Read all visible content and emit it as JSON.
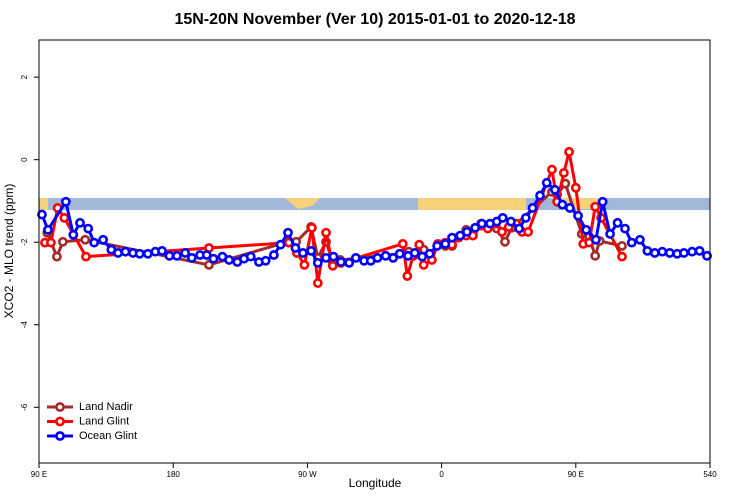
{
  "chart_data": {
    "type": "line",
    "title": "15N-20N November (Ver 10)   2015-01-01 to 2020-12-18",
    "x_label": "Longitude",
    "y_label": "XCO2 - MLO trend (ppm)",
    "xlim": [
      90,
      540
    ],
    "ylim": [
      -7.35,
      2.9
    ],
    "xticks": [
      {
        "value": 90,
        "label": "90 E"
      },
      180,
      {
        "value": 270,
        "label": "90 W"
      },
      {
        "value": 360,
        "label": "0"
      },
      {
        "value": 450,
        "label": "90 E"
      },
      540
    ],
    "yticks": [
      -6,
      -4,
      -2,
      0,
      2
    ],
    "legend": "bottom-left",
    "series": [
      {
        "name": "Land Nadir",
        "color": "#a52a2a",
        "x": [
          95.5,
          102,
          106,
          121,
          204,
          257,
          262.5,
          272.5,
          277,
          282.5,
          287,
          292,
          332,
          338,
          344,
          348,
          352,
          357.5,
          362.5,
          367,
          371.5,
          376.5,
          381,
          386.5,
          392.5,
          397,
          402.5,
          407,
          434,
          437.5,
          443,
          454,
          459,
          463,
          466,
          481
        ],
        "values": [
          -1.77,
          -2.35,
          -1.99,
          -1.94,
          -2.55,
          -1.99,
          -1.99,
          -1.63,
          -2.38,
          -1.99,
          -2.48,
          -2.43,
          -2.28,
          -2.23,
          -2.28,
          -2.18,
          -2.28,
          -2.06,
          -2.09,
          -2.09,
          -1.89,
          -1.7,
          -1.77,
          -1.55,
          -1.58,
          -1.67,
          -1.99,
          -1.65,
          -0.78,
          -0.85,
          -0.58,
          -1.8,
          -1.87,
          -2.33,
          -1.97,
          -2.09
        ]
      },
      {
        "name": "Land Glint",
        "color": "#ff0000",
        "x": [
          94,
          98,
          102.5,
          107,
          121.5,
          204,
          257.5,
          263,
          268,
          273,
          277,
          282.5,
          287,
          292.5,
          334,
          337,
          341,
          345,
          348,
          353.5,
          357.5,
          362.5,
          367,
          371.5,
          376.5,
          381,
          386.5,
          391,
          396,
          400.5,
          405,
          410,
          414,
          418,
          434,
          437.5,
          442,
          445.5,
          450,
          455,
          459,
          463,
          467,
          481
        ],
        "values": [
          -2.01,
          -2.01,
          -1.17,
          -1.41,
          -2.35,
          -2.14,
          -2.01,
          -2.26,
          -2.55,
          -1.65,
          -2.99,
          -1.77,
          -2.57,
          -2.5,
          -2.04,
          -2.82,
          -2.33,
          -2.06,
          -2.55,
          -2.43,
          -2.04,
          -2.01,
          -2.06,
          -1.87,
          -1.84,
          -1.84,
          -1.6,
          -1.67,
          -1.55,
          -1.75,
          -1.63,
          -1.55,
          -1.75,
          -1.75,
          -0.24,
          -1.02,
          -0.32,
          0.19,
          -0.68,
          -2.04,
          -2.01,
          -1.14,
          -1.41,
          -2.35
        ]
      },
      {
        "name": "Ocean Glint",
        "color": "#0000ff",
        "x": [
          92,
          96,
          108,
          113,
          117.5,
          123,
          127,
          133,
          138.5,
          143,
          148,
          153,
          157.5,
          163,
          168,
          172.5,
          177.5,
          182.5,
          188,
          192.5,
          198,
          202.5,
          207,
          213,
          217.5,
          223,
          227.5,
          232,
          237.5,
          242,
          247.5,
          252,
          257,
          262,
          267,
          272.5,
          277,
          282.5,
          287.5,
          292.5,
          298,
          302.5,
          308,
          312.5,
          317,
          322.5,
          327.5,
          332,
          337.5,
          342,
          347,
          352,
          357,
          362.5,
          367,
          372.5,
          377,
          382.5,
          387,
          392.5,
          397,
          401,
          406.5,
          412,
          416.5,
          421,
          426,
          430.5,
          436,
          441,
          446,
          451.5,
          457,
          463.5,
          468,
          473,
          478,
          483,
          487.5,
          493,
          498,
          503,
          508,
          513,
          518,
          522.5,
          528,
          533,
          538
        ],
        "values": [
          -1.33,
          -1.7,
          -1.02,
          -1.82,
          -1.53,
          -1.67,
          -2.01,
          -1.94,
          -2.18,
          -2.26,
          -2.23,
          -2.26,
          -2.28,
          -2.28,
          -2.23,
          -2.21,
          -2.33,
          -2.33,
          -2.26,
          -2.38,
          -2.31,
          -2.31,
          -2.4,
          -2.35,
          -2.43,
          -2.48,
          -2.4,
          -2.35,
          -2.48,
          -2.45,
          -2.31,
          -2.06,
          -1.77,
          -2.14,
          -2.26,
          -2.21,
          -2.5,
          -2.38,
          -2.35,
          -2.48,
          -2.5,
          -2.38,
          -2.45,
          -2.45,
          -2.38,
          -2.33,
          -2.38,
          -2.28,
          -2.33,
          -2.26,
          -2.35,
          -2.28,
          -2.09,
          -2.04,
          -1.89,
          -1.84,
          -1.75,
          -1.65,
          -1.55,
          -1.55,
          -1.5,
          -1.41,
          -1.5,
          -1.67,
          -1.41,
          -1.17,
          -0.87,
          -0.56,
          -0.73,
          -1.09,
          -1.17,
          -1.36,
          -1.7,
          -1.94,
          -1.02,
          -1.8,
          -1.53,
          -1.67,
          -2.01,
          -1.94,
          -2.21,
          -2.26,
          -2.23,
          -2.26,
          -2.28,
          -2.26,
          -2.23,
          -2.21,
          -2.33
        ]
      }
    ]
  }
}
